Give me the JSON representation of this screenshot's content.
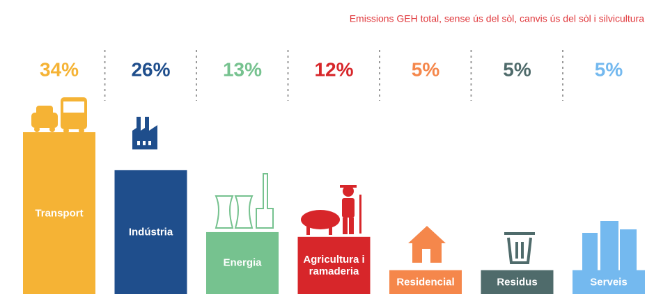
{
  "chart_data": {
    "type": "bar",
    "title": "Emissions GEH total, sense ús del sòl, canvis ús del sòl i silvicultura",
    "categories": [
      "Transport",
      "Indústria",
      "Energia",
      "Agricultura i ramaderia",
      "Residencial",
      "Residus",
      "Serveis"
    ],
    "values": [
      34,
      26,
      13,
      12,
      5,
      5,
      5
    ],
    "value_labels": [
      "34%",
      "26%",
      "13%",
      "12%",
      "5%",
      "5%",
      "5%"
    ],
    "colors": [
      "#f5b335",
      "#1f4e8c",
      "#76c28f",
      "#d7262a",
      "#f5874b",
      "#4f6b6b",
      "#74b9ef"
    ]
  }
}
